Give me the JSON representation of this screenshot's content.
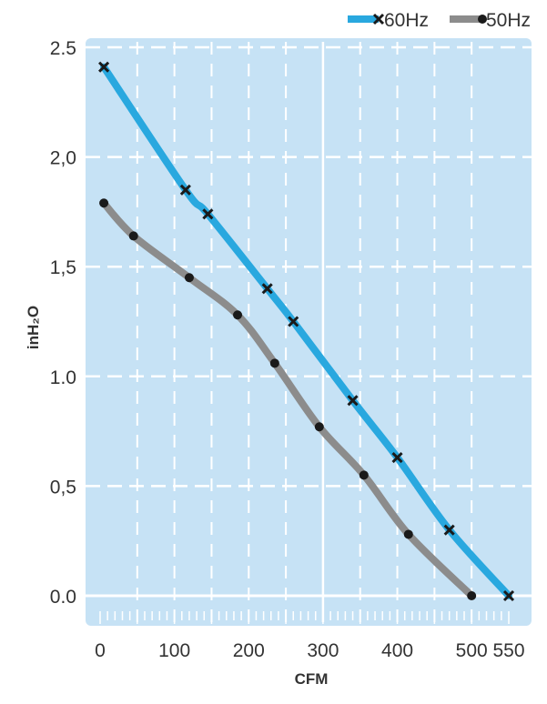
{
  "chart_data": {
    "type": "line",
    "xlabel": "CFM",
    "ylabel": "inH₂O",
    "xlim": [
      -5,
      555
    ],
    "ylim": [
      -0.15,
      2.55
    ],
    "x_ticks": [
      0,
      100,
      200,
      300,
      400,
      500,
      550
    ],
    "y_ticks": [
      0.0,
      0.5,
      1.0,
      1.5,
      2.0,
      2.5
    ],
    "y_tick_labels": [
      "0.0",
      "0,5",
      "1.0",
      "1,5",
      "2,0",
      "2.5"
    ],
    "grid": true,
    "legend_position": "top-right",
    "background_color": "#c6e2f5",
    "series": [
      {
        "name": "60Hz",
        "color": "#29a8df",
        "marker": "x",
        "x": [
          5,
          115,
          145,
          225,
          260,
          340,
          400,
          470,
          550
        ],
        "y": [
          2.41,
          1.85,
          1.74,
          1.4,
          1.25,
          0.89,
          0.63,
          0.3,
          0.0
        ]
      },
      {
        "name": "50Hz",
        "color": "#8c8c8c",
        "marker": "dot",
        "x": [
          5,
          45,
          120,
          185,
          235,
          295,
          355,
          415,
          500
        ],
        "y": [
          1.79,
          1.64,
          1.45,
          1.28,
          1.06,
          0.77,
          0.55,
          0.28,
          0.0
        ]
      }
    ]
  }
}
